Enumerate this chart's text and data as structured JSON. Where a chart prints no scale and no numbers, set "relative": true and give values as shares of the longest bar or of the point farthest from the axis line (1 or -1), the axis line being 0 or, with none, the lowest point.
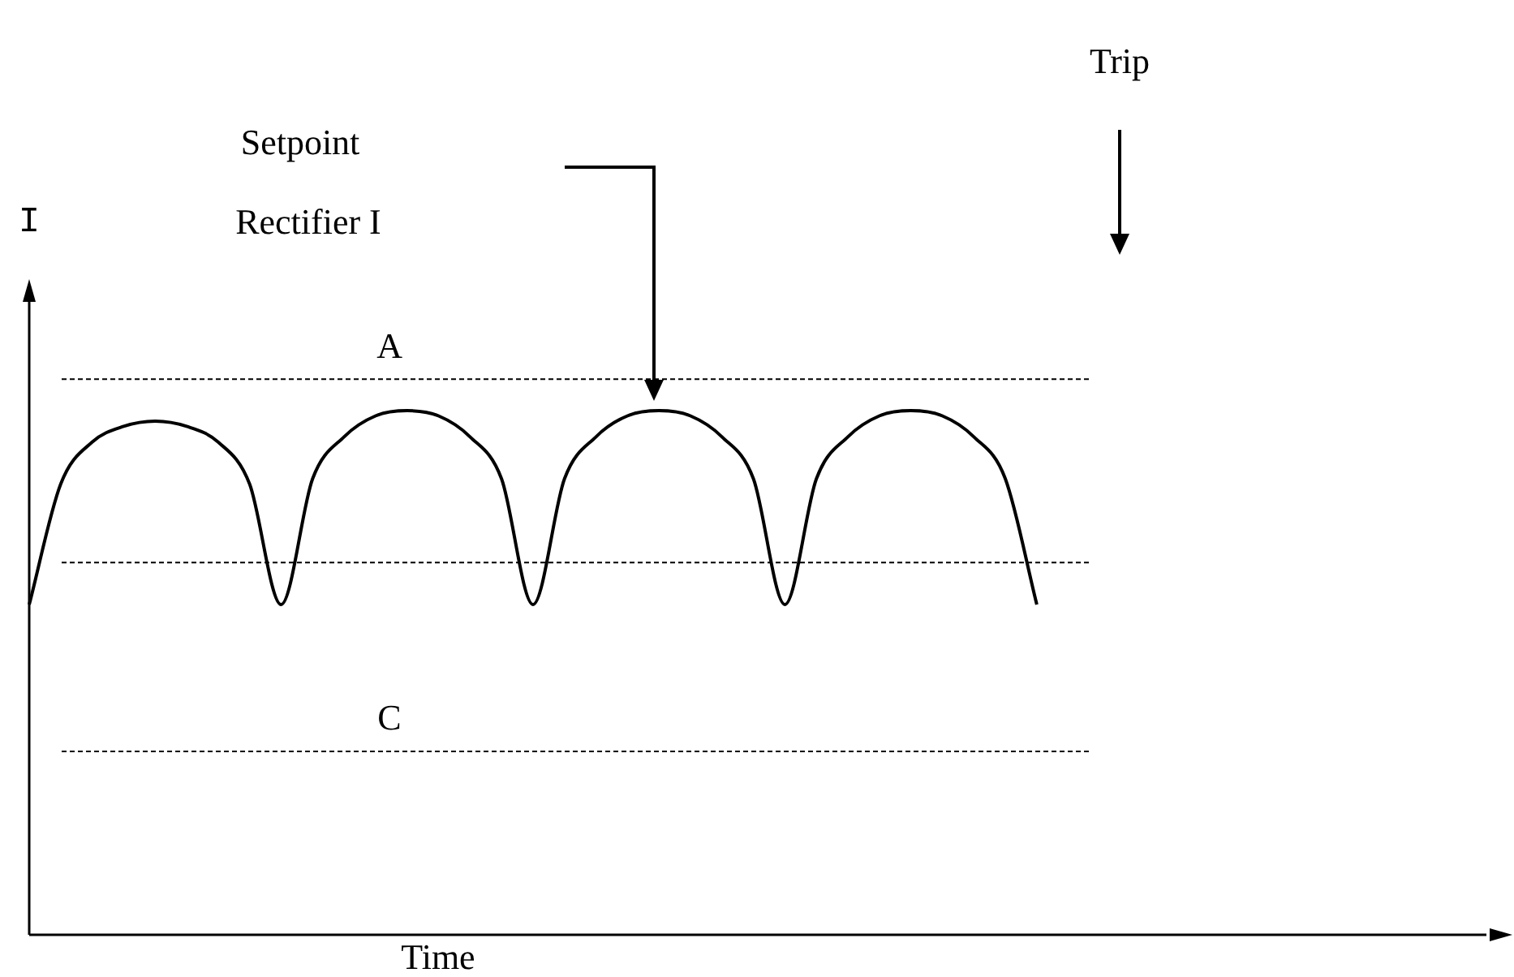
{
  "chart_data": {
    "type": "line",
    "relative": true,
    "xlabel": "Time",
    "ylabel": "I",
    "marker": "none",
    "line_style": "solid",
    "annotations": [
      "Setpoint",
      "Trip",
      "Rectifier I"
    ],
    "categories": [
      null,
      null,
      null,
      null,
      null,
      null,
      null,
      null,
      null,
      null,
      null,
      null,
      null,
      null,
      null,
      null,
      null,
      null,
      null,
      null,
      null,
      null,
      null,
      null,
      null,
      null,
      null,
      null,
      null,
      null,
      null,
      null,
      null,
      null,
      null,
      null,
      null,
      null,
      null,
      null,
      null,
      null,
      null,
      null,
      null,
      null,
      null,
      null
    ],
    "series": [
      {
        "color": "#000000",
        "values": [
          0.63,
          0.86,
          0.94,
          0.97,
          0.98,
          0.97,
          0.94,
          0.86,
          0.63,
          0.87,
          0.95,
          0.99,
          1,
          0.99,
          0.95,
          0.87,
          0.63,
          0.87,
          0.95,
          0.99,
          1,
          0.99,
          0.95,
          0.87,
          0.63,
          0.87,
          0.95,
          0.99,
          1,
          0.99,
          0.95,
          0.87,
          0.63,
          null,
          null,
          null,
          null,
          null,
          null,
          null,
          null,
          null,
          null,
          null,
          null,
          null,
          null,
          null
        ]
      }
    ],
    "ref_lines": [
      {
        "axis": "y",
        "value": 1.06,
        "label": "A",
        "color": "#000000",
        "line_style": "dashed"
      },
      {
        "axis": "y",
        "value": 0.71,
        "label": null,
        "color": "#000000",
        "line_style": "dashed"
      },
      {
        "axis": "y",
        "value": 0.35,
        "label": "C",
        "color": "#000000",
        "line_style": "dashed"
      }
    ]
  }
}
